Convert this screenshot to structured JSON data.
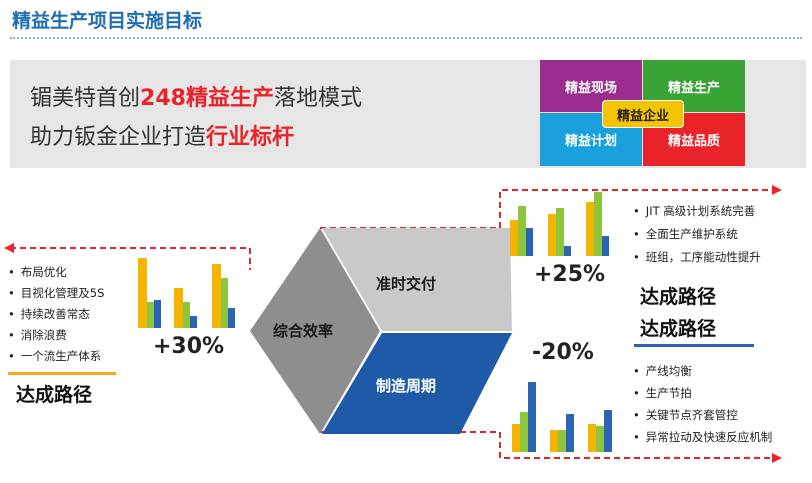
{
  "title": "精益生产项目实施目标",
  "banner": {
    "line1_prefix": "镅美特首创",
    "line1_highlight": "248精益生产",
    "line1_suffix": "落地模式",
    "line2_prefix": "助力钣金企业打造",
    "line2_highlight": "行业标杆"
  },
  "quadrants": {
    "top_left": "精益现场",
    "top_right": "精益生产",
    "bottom_left": "精益计划",
    "bottom_right": "精益品质",
    "center": "精益企业",
    "colors": {
      "top_left": "#9b2d8e",
      "top_right": "#3aa335",
      "bottom_left": "#1aa0dc",
      "bottom_right": "#e8232a",
      "center": "#f5c400"
    }
  },
  "hexagon": {
    "left": "综合效率",
    "top_right": "准时交付",
    "bottom_right": "制造周期"
  },
  "left_group": {
    "bullets": [
      "布局优化",
      "目视化管理及5S",
      "持续改善常态",
      "消除浪费",
      "一个流生产体系"
    ],
    "percent": "+30%",
    "route_label": "达成路径"
  },
  "top_right_group": {
    "bullets": [
      "JIT 高级计划系统完善",
      "全面生产维护系统",
      "班组，工序能动性提升"
    ],
    "percent": "+25%",
    "route_label": "达成路径"
  },
  "bottom_right_group": {
    "bullets": [
      "产线均衡",
      "生产节拍",
      "关键节点齐套管控",
      "异常拉动及快速反应机制"
    ],
    "percent": "-20%",
    "route_label": "达成路径"
  },
  "bar_colors": [
    "#f5b400",
    "#8cc63f",
    "#2b64b5"
  ]
}
